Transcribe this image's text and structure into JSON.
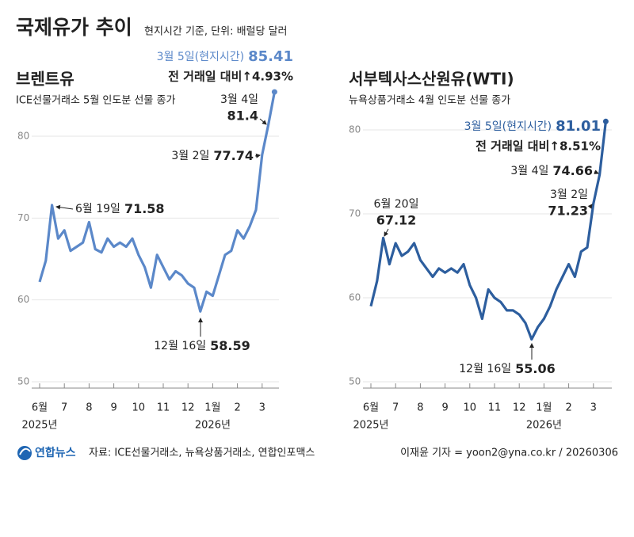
{
  "header": {
    "title": "국제유가 추이",
    "subtitle": "현지시간 기준, 단위: 배럴당 달러"
  },
  "chart_data": [
    {
      "type": "line",
      "title": "브렌트유",
      "subtitle": "ICE선물거래소 5월 인도분 선물 종가",
      "categories": [
        "6월",
        null,
        null,
        null,
        "7",
        null,
        null,
        null,
        "8",
        null,
        null,
        null,
        "9",
        null,
        null,
        null,
        "10",
        null,
        null,
        null,
        "11",
        null,
        null,
        null,
        "12",
        null,
        null,
        null,
        "1월",
        null,
        null,
        null,
        "2",
        null,
        null,
        null,
        "3",
        null,
        null
      ],
      "year_labels": [
        "2025년",
        null,
        null,
        null,
        null,
        null,
        null,
        null,
        null,
        null,
        null,
        null,
        null,
        null,
        null,
        null,
        null,
        null,
        null,
        null,
        null,
        null,
        null,
        null,
        null,
        null,
        null,
        null,
        "2026년",
        null,
        null,
        null,
        null,
        null,
        null,
        null,
        null,
        null,
        null
      ],
      "series": [
        {
          "name": "브렌트유",
          "color": "#5b88c9",
          "values": [
            62.2,
            64.8,
            71.58,
            67.5,
            68.5,
            66.0,
            66.5,
            67.0,
            69.5,
            66.2,
            65.8,
            67.5,
            66.5,
            67.0,
            66.5,
            67.5,
            65.5,
            64.0,
            61.5,
            65.5,
            64.0,
            62.5,
            63.5,
            63.0,
            62.0,
            61.5,
            58.59,
            61.0,
            60.5,
            63.0,
            65.5,
            66.0,
            68.5,
            67.5,
            69.0,
            71.0,
            77.74,
            81.4,
            85.41
          ],
          "point_labels": [
            null,
            null,
            "6월 19일",
            null,
            null,
            null,
            null,
            null,
            null,
            null,
            null,
            null,
            null,
            null,
            null,
            null,
            null,
            null,
            null,
            null,
            null,
            null,
            null,
            null,
            null,
            null,
            "12월 16일",
            null,
            null,
            null,
            null,
            null,
            null,
            null,
            null,
            null,
            "3월 2일",
            "3월 4일",
            "3월 5일(현지시간)"
          ]
        }
      ],
      "change_note": "전 거래일 대비↑4.93%",
      "ylim": [
        50,
        88
      ],
      "yticks": [
        50,
        60,
        70,
        80
      ],
      "grid": true
    },
    {
      "type": "line",
      "title": "서부텍사스산원유(WTI)",
      "subtitle": "뉴욕상품거래소 4월 인도분 선물 종가",
      "categories": [
        "6월",
        null,
        null,
        null,
        "7",
        null,
        null,
        null,
        "8",
        null,
        null,
        null,
        "9",
        null,
        null,
        null,
        "10",
        null,
        null,
        null,
        "11",
        null,
        null,
        null,
        "12",
        null,
        null,
        null,
        "1월",
        null,
        null,
        null,
        "2",
        null,
        null,
        null,
        "3",
        null,
        null
      ],
      "year_labels": [
        "2025년",
        null,
        null,
        null,
        null,
        null,
        null,
        null,
        null,
        null,
        null,
        null,
        null,
        null,
        null,
        null,
        null,
        null,
        null,
        null,
        null,
        null,
        null,
        null,
        null,
        null,
        null,
        null,
        "2026년",
        null,
        null,
        null,
        null,
        null,
        null,
        null,
        null,
        null,
        null
      ],
      "series": [
        {
          "name": "서부텍사스산원유(WTI)",
          "color": "#2d5e9e",
          "values": [
            59.0,
            62.0,
            67.12,
            64.0,
            66.5,
            65.0,
            65.5,
            66.5,
            64.5,
            63.5,
            62.5,
            63.5,
            63.0,
            63.5,
            63.0,
            64.0,
            61.5,
            60.0,
            57.5,
            61.0,
            60.0,
            59.5,
            58.5,
            58.5,
            58.0,
            57.0,
            55.06,
            56.5,
            57.5,
            59.0,
            61.0,
            62.5,
            64.0,
            62.5,
            65.5,
            66.0,
            71.23,
            74.66,
            81.01
          ],
          "point_labels": [
            null,
            null,
            "6월 20일",
            null,
            null,
            null,
            null,
            null,
            null,
            null,
            null,
            null,
            null,
            null,
            null,
            null,
            null,
            null,
            null,
            null,
            null,
            null,
            null,
            null,
            null,
            null,
            "12월 16일",
            null,
            null,
            null,
            null,
            null,
            null,
            null,
            null,
            null,
            "3월 2일",
            "3월 4일",
            "3월 5일(현지시간)"
          ]
        }
      ],
      "change_note": "전 거래일 대비↑8.51%",
      "ylim": [
        50,
        85
      ],
      "yticks": [
        50,
        60,
        70,
        80
      ],
      "grid": true
    }
  ],
  "footer": {
    "brand": "연합뉴스",
    "source": "자료: ICE선물거래소, 뉴욕상품거래소, 연합인포맥스",
    "credit": "이재윤 기자 = yoon2@yna.co.kr / 20260306"
  }
}
